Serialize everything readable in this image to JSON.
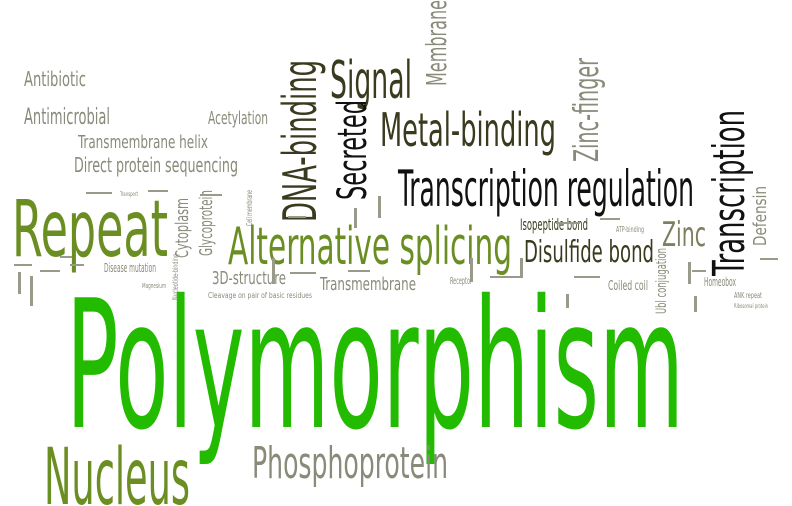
{
  "colors": {
    "green": "#22bb00",
    "olive": "#6b8e23",
    "khaki": "#7f7f5f",
    "dark": "#3a3a1e",
    "black": "#111111",
    "grey": "#8a8a7a"
  },
  "words": {
    "polymorphism": "Polymorphism",
    "nucleus": "Nucleus",
    "phosphoprotein": "Phosphoprotein",
    "repeat": "Repeat",
    "alternative_splicing": "Alternative splicing",
    "transcription_regulation": "Transcription regulation",
    "transcription": "Transcription",
    "metal_binding": "Metal-binding",
    "signal": "Signal",
    "secreted": "Secreted",
    "dna_binding": "DNA-binding",
    "zinc_finger": "Zinc-finger",
    "membrane": "Membrane",
    "zinc": "Zinc",
    "disulfide_bond": "Disulfide bond",
    "isopeptide_bond": "Isopeptide bond",
    "antibiotic": "Antibiotic",
    "antimicrobial": "Antimicrobial",
    "acetylation": "Acetylation",
    "transmembrane_helix": "Transmembrane helix",
    "direct_protein_sequencing": "Direct protein sequencing",
    "cytoplasm": "Cytoplasm",
    "glycoprotein": "Glycoprotein",
    "structure_3d": "3D-structure",
    "transmembrane": "Transmembrane",
    "cleavage": "Cleavage on pair of basic residues",
    "disease_mutation": "Disease mutation",
    "receptor": "Receptor",
    "coiled_coil": "Coiled coil",
    "ubl_conjugation": "Ubl conjugation",
    "homeobox": "Homeobox",
    "defensin": "Defensin",
    "atp_binding": "ATP-binding",
    "ank_repeat": "ANK repeat",
    "ribosomal_protein": "Ribosomal protein",
    "cell_membrane": "Cell membrane",
    "nucleotide_binding": "Nucleotide-binding",
    "magnesium": "Magnesium",
    "transport": "Transport"
  }
}
